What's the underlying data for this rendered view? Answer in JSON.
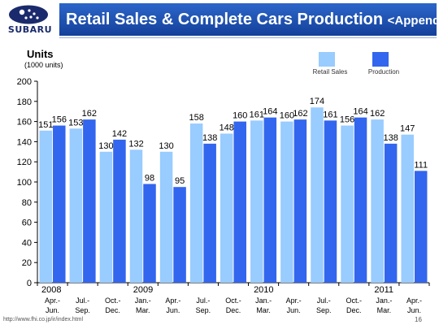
{
  "logo": {
    "text": "SUBARU"
  },
  "header": {
    "title": "Retail Sales & Complete Cars Production",
    "subtitle": "<Appendix>"
  },
  "units": {
    "label": "Units",
    "sub": "(1000 units)"
  },
  "footer": {
    "url": "http://www.fhi.co.jp/ir/index.html",
    "page": "16"
  },
  "colors": {
    "retail": "#99ccff",
    "production": "#3366ee",
    "title_bar": "#1e4fb3"
  },
  "chart_data": {
    "type": "bar",
    "title": "Retail Sales & Complete Cars Production",
    "ylabel": "Units",
    "ylim": [
      0,
      200
    ],
    "yticks": [
      0,
      20,
      40,
      60,
      80,
      100,
      120,
      140,
      160,
      180,
      200
    ],
    "grid": false,
    "legend_position": "top-right",
    "categories": [
      "Apr.-Jun.",
      "Jul.-Sep.",
      "Oct.-Dec.",
      "Jan.-Mar.",
      "Apr.-Jun.",
      "Jul.-Sep.",
      "Oct.-Dec.",
      "Jan.-Mar.",
      "Apr.-Jun.",
      "Jul.-Sep.",
      "Oct.-Dec.",
      "Jan.-Mar.",
      "Apr.-Jun."
    ],
    "category_lines": [
      [
        "Apr.-",
        "Jun."
      ],
      [
        "Jul.-",
        "Sep."
      ],
      [
        "Oct.-",
        "Dec."
      ],
      [
        "Jan.-",
        "Mar."
      ],
      [
        "Apr.-",
        "Jun."
      ],
      [
        "Jul.-",
        "Sep."
      ],
      [
        "Oct.-",
        "Dec."
      ],
      [
        "Jan.-",
        "Mar."
      ],
      [
        "Apr.-",
        "Jun."
      ],
      [
        "Jul.-",
        "Sep."
      ],
      [
        "Oct.-",
        "Dec."
      ],
      [
        "Jan.-",
        "Mar."
      ],
      [
        "Apr.-",
        "Jun."
      ]
    ],
    "years": [
      {
        "label": "2008",
        "index": 0
      },
      {
        "label": "2009",
        "index": 3
      },
      {
        "label": "2010",
        "index": 7
      },
      {
        "label": "2011",
        "index": 11
      }
    ],
    "series": [
      {
        "name": "Retail Sales",
        "color": "#99ccff",
        "values": [
          151,
          153,
          130,
          132,
          130,
          158,
          148,
          161,
          160,
          174,
          156,
          162,
          147
        ]
      },
      {
        "name": "Production",
        "color": "#3366ee",
        "values": [
          156,
          162,
          142,
          98,
          95,
          138,
          160,
          164,
          162,
          161,
          164,
          138,
          111
        ]
      }
    ]
  }
}
